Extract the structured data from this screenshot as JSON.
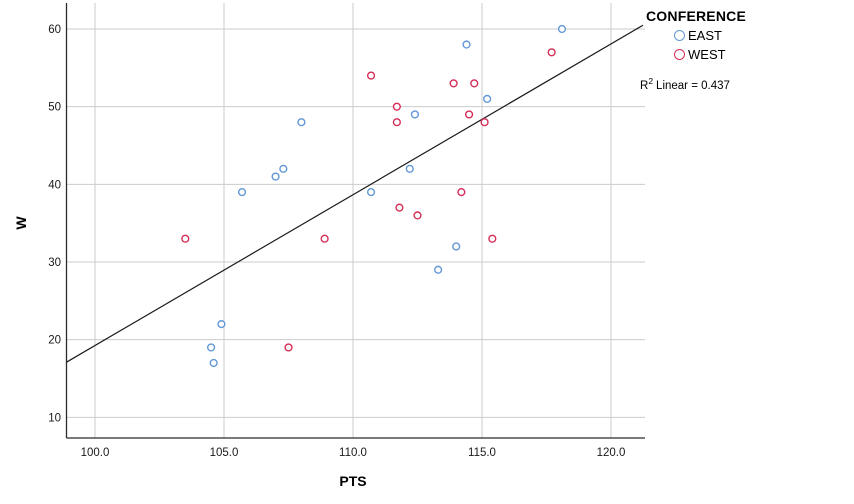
{
  "legend": {
    "title": "CONFERENCE",
    "entries": [
      {
        "label": "EAST",
        "color": "#6398D6"
      },
      {
        "label": "WEST",
        "color": "#D62E56"
      }
    ]
  },
  "annotation": {
    "r2_label": "R",
    "r2_sup": "2",
    "r2_text": "Linear = 0.437"
  },
  "chart_data": {
    "type": "scatter",
    "xlabel": "PTS",
    "ylabel": "W",
    "x_tick_labels": [
      "100.0",
      "105.0",
      "110.0",
      "115.0",
      "120.0"
    ],
    "x_tick_values": [
      100,
      105,
      110,
      115,
      120
    ],
    "y_tick_labels": [
      "10",
      "20",
      "30",
      "40",
      "50",
      "60"
    ],
    "y_tick_values": [
      10,
      20,
      30,
      40,
      50,
      60
    ],
    "xlim": [
      98.9,
      121.4
    ],
    "ylim": [
      6.6,
      62.2
    ],
    "grid": true,
    "legend_position": "outside-top-right",
    "fit_line": true,
    "r2_linear": 0.437,
    "colors": {
      "gridline": "#cbcbcb",
      "axis": "#2b2b2b",
      "fit_line": "#1a1a1a"
    },
    "series": [
      {
        "name": "EAST",
        "color": "#6398D6",
        "points": [
          [
            118.1,
            60
          ],
          [
            114.4,
            58
          ],
          [
            115.2,
            51
          ],
          [
            112.4,
            49
          ],
          [
            108.0,
            48
          ],
          [
            112.2,
            42
          ],
          [
            107.3,
            42
          ],
          [
            107.0,
            41
          ],
          [
            110.7,
            39
          ],
          [
            105.7,
            39
          ],
          [
            114.0,
            32
          ],
          [
            113.3,
            29
          ],
          [
            104.9,
            22
          ],
          [
            104.5,
            19
          ],
          [
            104.6,
            17
          ]
        ]
      },
      {
        "name": "WEST",
        "color": "#D62E56",
        "points": [
          [
            117.7,
            57
          ],
          [
            110.7,
            54
          ],
          [
            113.9,
            53
          ],
          [
            114.7,
            53
          ],
          [
            111.7,
            50
          ],
          [
            114.5,
            49
          ],
          [
            115.1,
            48
          ],
          [
            111.7,
            48
          ],
          [
            114.2,
            39
          ],
          [
            111.8,
            37
          ],
          [
            112.5,
            36
          ],
          [
            103.5,
            33
          ],
          [
            108.9,
            33
          ],
          [
            115.4,
            33
          ],
          [
            107.5,
            19
          ]
        ]
      }
    ]
  }
}
